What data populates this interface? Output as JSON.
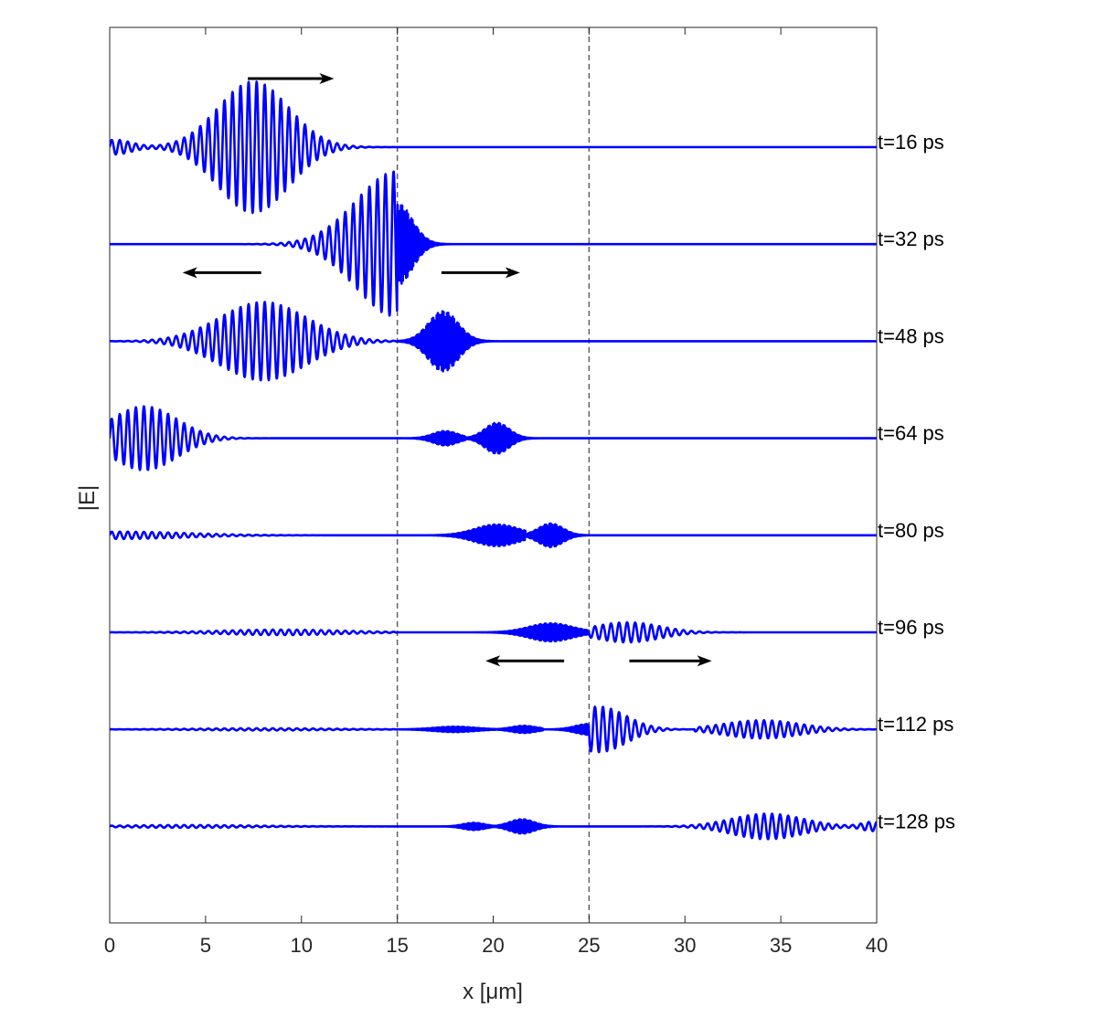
{
  "chart_data": {
    "type": "line",
    "title": "",
    "xlabel": "x [μm]",
    "ylabel": "|E|",
    "xlim": [
      0,
      40
    ],
    "x_ticks": [
      0,
      5,
      10,
      15,
      20,
      25,
      30,
      35,
      40
    ],
    "grid": false,
    "legend": "none",
    "line_color": "#0000ff",
    "interface_lines_x": [
      15,
      25
    ],
    "series": [
      {
        "label": "t=16 ps",
        "packets": [
          {
            "center": 7.5,
            "width": 2.6,
            "amp": 0.72,
            "period": 0.42
          },
          {
            "center": 0.3,
            "width": 1.2,
            "amp": 0.08,
            "period": 0.42
          }
        ]
      },
      {
        "label": "t=32 ps",
        "packets": [
          {
            "center": 15.0,
            "width": 3.0,
            "amp": 0.8,
            "period": 0.42,
            "x_max": 15.0
          },
          {
            "center": 15.0,
            "width": 1.1,
            "amp": 0.45,
            "period": 0.06,
            "x_min": 15.0
          }
        ]
      },
      {
        "label": "t=48 ps",
        "packets": [
          {
            "center": 8.0,
            "width": 3.2,
            "amp": 0.43,
            "period": 0.42,
            "x_max": 15.0
          },
          {
            "center": 17.4,
            "width": 1.1,
            "amp": 0.33,
            "period": 0.06,
            "x_min": 15.0
          }
        ]
      },
      {
        "label": "t=64 ps",
        "packets": [
          {
            "center": 1.8,
            "width": 2.4,
            "amp": 0.35,
            "period": 0.42
          },
          {
            "center": 17.5,
            "width": 0.9,
            "amp": 0.08,
            "period": 0.06,
            "x_min": 15.0,
            "x_max": 18.6
          },
          {
            "center": 20.2,
            "width": 0.9,
            "amp": 0.17,
            "period": 0.06,
            "x_min": 18.6,
            "x_max": 25.0
          }
        ]
      },
      {
        "label": "t=80 ps",
        "packets": [
          {
            "center": 0.5,
            "width": 5.0,
            "amp": 0.04,
            "period": 0.42
          },
          {
            "center": 20.2,
            "width": 1.6,
            "amp": 0.12,
            "period": 0.06,
            "x_min": 15.0,
            "x_max": 21.7
          },
          {
            "center": 23.0,
            "width": 0.9,
            "amp": 0.13,
            "period": 0.06,
            "x_min": 21.7,
            "x_max": 25.0
          }
        ]
      },
      {
        "label": "t=96 ps",
        "packets": [
          {
            "center": 9.0,
            "width": 4.5,
            "amp": 0.03,
            "period": 0.42,
            "x_max": 15.0
          },
          {
            "center": 23.0,
            "width": 1.6,
            "amp": 0.1,
            "period": 0.06,
            "x_min": 15.0,
            "x_max": 25.0
          },
          {
            "center": 27.0,
            "width": 2.4,
            "amp": 0.11,
            "period": 0.42,
            "x_min": 25.0
          }
        ]
      },
      {
        "label": "t=112 ps",
        "packets": [
          {
            "center": 8.0,
            "width": 5.0,
            "amp": 0.012,
            "period": 0.42,
            "x_max": 15.0
          },
          {
            "center": 18.0,
            "width": 1.5,
            "amp": 0.03,
            "period": 0.06,
            "x_min": 15.0,
            "x_max": 20.2
          },
          {
            "center": 21.6,
            "width": 0.9,
            "amp": 0.04,
            "period": 0.06,
            "x_min": 20.2,
            "x_max": 22.6
          },
          {
            "center": 25.0,
            "width": 1.0,
            "amp": 0.06,
            "period": 0.06,
            "x_min": 22.6,
            "x_max": 25.0
          },
          {
            "center": 25.5,
            "width": 2.0,
            "amp": 0.25,
            "period": 0.42,
            "x_min": 25.0,
            "x_max": 30.5
          },
          {
            "center": 34.0,
            "width": 2.8,
            "amp": 0.1,
            "period": 0.42,
            "x_min": 30.5
          }
        ]
      },
      {
        "label": "t=128 ps",
        "packets": [
          {
            "center": 4.0,
            "width": 5.0,
            "amp": 0.015,
            "period": 0.42,
            "x_max": 15.0
          },
          {
            "center": 19.0,
            "width": 0.8,
            "amp": 0.04,
            "period": 0.06,
            "x_min": 15.0,
            "x_max": 20.0
          },
          {
            "center": 21.5,
            "width": 0.9,
            "amp": 0.08,
            "period": 0.06,
            "x_min": 20.0,
            "x_max": 25.0
          },
          {
            "center": 34.3,
            "width": 2.6,
            "amp": 0.14,
            "period": 0.42,
            "x_min": 25.0
          },
          {
            "center": 39.8,
            "width": 0.8,
            "amp": 0.05,
            "period": 0.42,
            "x_min": 25.0
          }
        ]
      }
    ],
    "arrows": [
      {
        "trace": "t=16 ps",
        "x_start": 7.2,
        "x_end": 11.7
      },
      {
        "trace": "t=48 ps",
        "x_start": 7.9,
        "x_end": 3.8
      },
      {
        "trace": "t=48 ps",
        "x_start": 17.3,
        "x_end": 21.4
      },
      {
        "trace": "t=112 ps",
        "x_start": 23.7,
        "x_end": 19.6
      },
      {
        "trace": "t=112 ps",
        "x_start": 27.1,
        "x_end": 31.4
      }
    ]
  }
}
